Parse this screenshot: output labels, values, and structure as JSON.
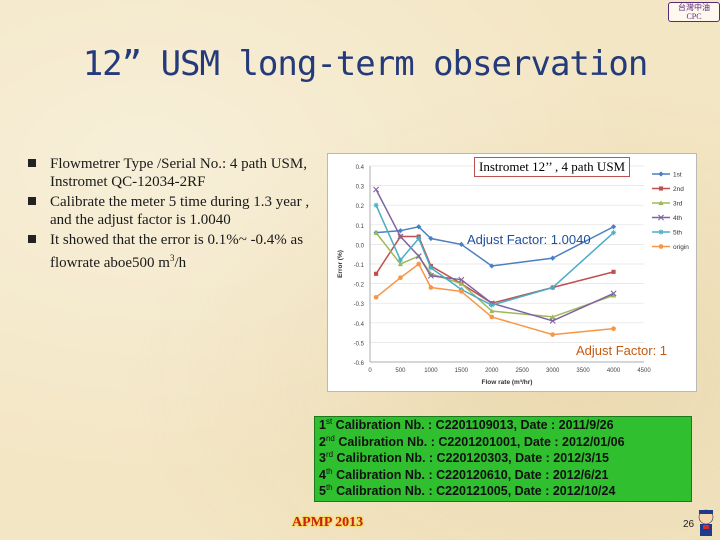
{
  "logo": {
    "line1": "台灣中油",
    "line2": "CPC"
  },
  "title": "12” USM long-term observation",
  "bullets": [
    "Flowmetrer Type /Serial No.: 4 path USM, Instromet QC-12034-2RF",
    "Calibrate the meter 5 time during 1.3 year , and the adjust factor is 1.0040",
    "It showed that the error is 0.1%~ -0.4% as flowrate aboe500 m"
  ],
  "bullet3_sup": "3",
  "bullet3_tail": "/h",
  "callouts": {
    "meter": "Instromet 12’’ , 4 path USM",
    "adjust1": "Adjust Factor: 1.0040",
    "adjust2": "Adjust Factor: 1"
  },
  "calibrations": [
    {
      "ord": "1",
      "sup": "st",
      "text": " Calibration Nb. : C2201109013,  Date : 2011/9/26"
    },
    {
      "ord": "2",
      "sup": "nd",
      "text": " Calibration Nb. : C2201201001,  Date : 2012/01/06"
    },
    {
      "ord": "3",
      "sup": "rd",
      "text": " Calibration Nb. : C220120303,  Date : 2012/3/15"
    },
    {
      "ord": "4",
      "sup": "th",
      "text": " Calibration Nb. : C220120610,  Date : 2012/6/21"
    },
    {
      "ord": "5",
      "sup": "th",
      "text": " Calibration Nb. : C220121005,  Date : 2012/10/24"
    }
  ],
  "footer": {
    "apmp": "APMP 2013",
    "page": "26"
  },
  "chart_data": {
    "type": "line",
    "xlabel": "Flow rate (m³/hr)",
    "ylabel": "Error (%)",
    "xlim": [
      0,
      4500
    ],
    "ylim": [
      -0.6,
      0.4
    ],
    "xticks": [
      0,
      500,
      1000,
      1500,
      2000,
      2500,
      3000,
      3500,
      4000,
      4500
    ],
    "yticks": [
      0.4,
      0.3,
      0.2,
      0.1,
      0,
      -0.1,
      -0.2,
      -0.3,
      -0.4,
      -0.5,
      -0.6
    ],
    "legend_position": "right",
    "series": [
      {
        "name": "1st",
        "color": "#4a7fc1",
        "marker": "diamond",
        "x": [
          100,
          500,
          800,
          1000,
          1500,
          2000,
          3000,
          4000
        ],
        "y": [
          0.06,
          0.07,
          0.09,
          0.03,
          0.0,
          -0.11,
          -0.07,
          0.09
        ]
      },
      {
        "name": "2nd",
        "color": "#c0504d",
        "marker": "square",
        "x": [
          100,
          500,
          800,
          1000,
          1500,
          2000,
          3000,
          4000
        ],
        "y": [
          -0.15,
          0.04,
          0.04,
          -0.11,
          -0.2,
          -0.3,
          -0.22,
          -0.14
        ]
      },
      {
        "name": "3rd",
        "color": "#9bbb59",
        "marker": "triangle",
        "x": [
          100,
          500,
          800,
          1000,
          1500,
          2000,
          3000,
          4000
        ],
        "y": [
          0.06,
          -0.1,
          -0.06,
          -0.15,
          -0.2,
          -0.34,
          -0.37,
          -0.26
        ]
      },
      {
        "name": "4th",
        "color": "#8064a2",
        "marker": "x",
        "x": [
          100,
          500,
          800,
          1000,
          1500,
          2000,
          3000,
          4000
        ],
        "y": [
          0.28,
          0.04,
          -0.06,
          -0.16,
          -0.18,
          -0.3,
          -0.39,
          -0.25
        ]
      },
      {
        "name": "5th",
        "color": "#4bacc6",
        "marker": "star",
        "x": [
          100,
          500,
          800,
          1000,
          1500,
          2000,
          3000,
          4000
        ],
        "y": [
          0.2,
          -0.08,
          0.03,
          -0.12,
          -0.23,
          -0.31,
          -0.22,
          0.06
        ]
      },
      {
        "name": "origin",
        "color": "#f79646",
        "marker": "circle",
        "x": [
          100,
          500,
          800,
          1000,
          1500,
          2000,
          3000,
          4000
        ],
        "y": [
          -0.27,
          -0.17,
          -0.1,
          -0.22,
          -0.24,
          -0.37,
          -0.46,
          -0.43
        ]
      }
    ]
  }
}
